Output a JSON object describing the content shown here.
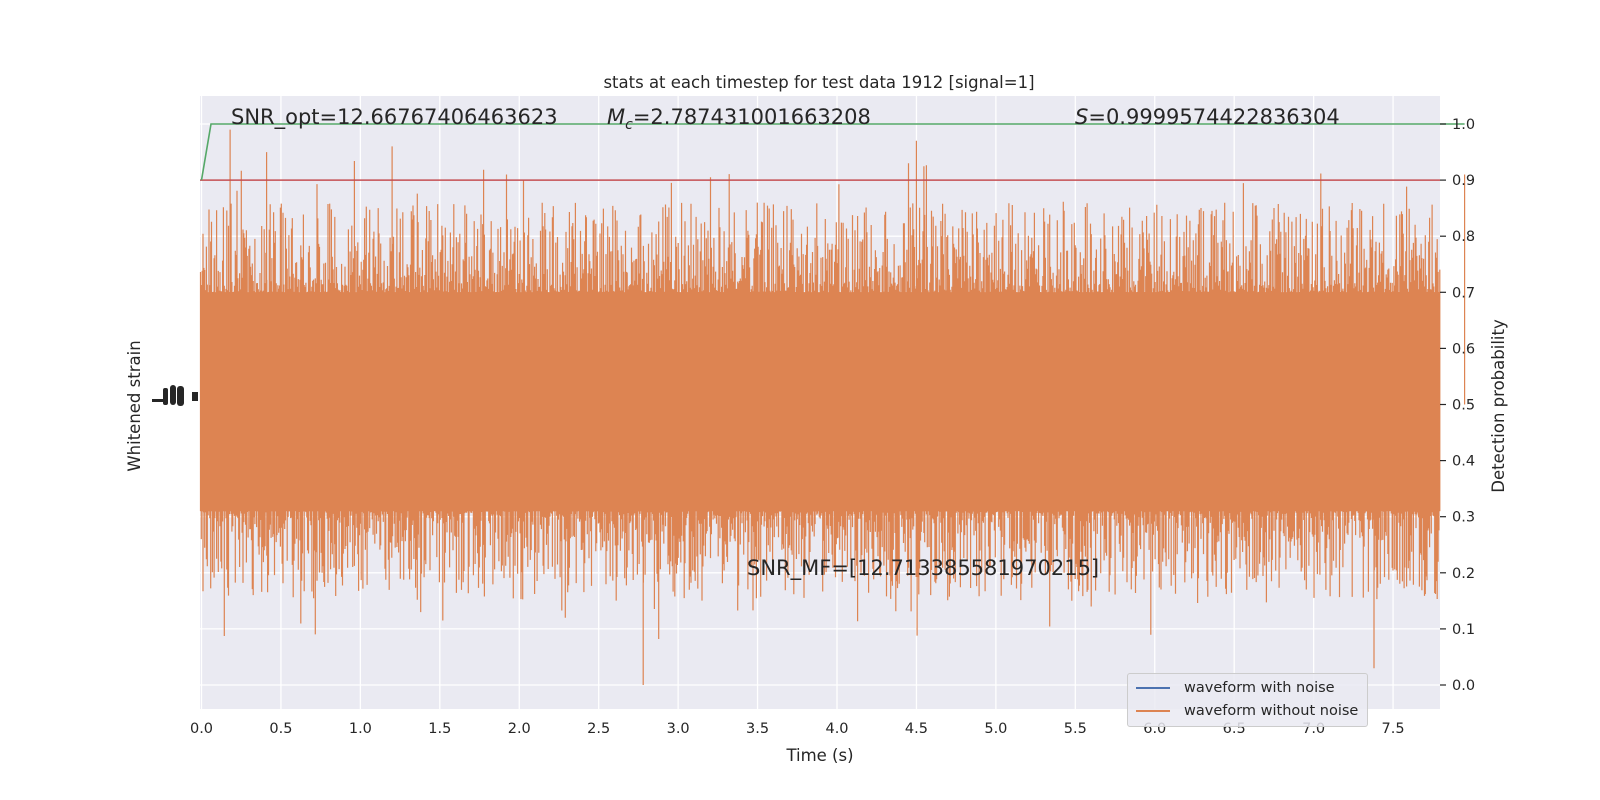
{
  "chart_data": {
    "type": "line",
    "title": "stats at each timestep for test data 1912 [signal=1]",
    "xlabel": "Time (s)",
    "ylabel_left": "Whitened strain",
    "ylabel_right": "Detection probability",
    "xlim": [
      0.0,
      8.0
    ],
    "ylim_right": [
      -0.05,
      1.05
    ],
    "x_ticks": [
      "0.0",
      "0.5",
      "1.0",
      "1.5",
      "2.0",
      "2.5",
      "3.0",
      "3.5",
      "4.0",
      "4.5",
      "5.0",
      "5.5",
      "6.0",
      "6.5",
      "7.0",
      "7.5"
    ],
    "y_ticks_right": [
      "0.0",
      "0.1",
      "0.2",
      "0.3",
      "0.4",
      "0.5",
      "0.6",
      "0.7",
      "0.8",
      "0.9",
      "1.0"
    ],
    "grid": true,
    "legend_position": "lower-right",
    "annotations": {
      "snr_opt": "SNR_opt=12.66767406463623",
      "mc_symbol": "M",
      "mc_subscript": "c",
      "mc_value": "=2.787431001663208",
      "s_symbol": "S",
      "s_value": "=0.9999574422836304",
      "snr_mf": "SNR_MF=[12.713385581970215]"
    },
    "series": [
      {
        "name": "waveform with noise",
        "color": "#4c72b0"
      },
      {
        "name": "waveform without noise",
        "color": "#dd8452"
      }
    ],
    "detection_probability": {
      "color": "#55a868",
      "points": [
        [
          0.0,
          0.9
        ],
        [
          0.06,
          1.0
        ],
        [
          7.95,
          1.0
        ]
      ]
    },
    "threshold": {
      "color": "#c44e52",
      "value": 0.9
    },
    "noise_envelope": {
      "band_low": 0.31,
      "band_high": 0.7,
      "spike_max": 1.0,
      "spike_min": 0.0
    }
  }
}
